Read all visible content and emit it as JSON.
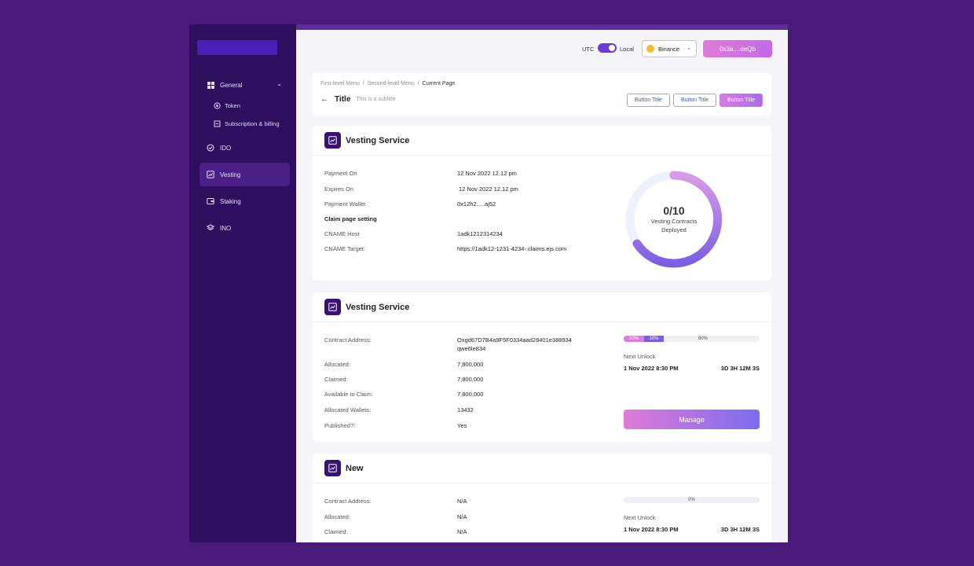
{
  "colors": {
    "background": "#4a1a7a",
    "sidebar": "#2e0e5e",
    "accent": "#6a3cd6",
    "gradient_start": "#e07ad8",
    "gradient_end": "#7b6cf0"
  },
  "sidebar": {
    "items": [
      {
        "label": "General",
        "icon": "grid-icon"
      },
      {
        "label": "Token",
        "icon": "token-icon"
      },
      {
        "label": "Subscription & billing",
        "icon": "billing-icon"
      },
      {
        "label": "IDO",
        "icon": "check-circle-icon"
      },
      {
        "label": "Vesting",
        "icon": "chart-icon",
        "active": true
      },
      {
        "label": "Staking",
        "icon": "wallet-icon"
      },
      {
        "label": "INO",
        "icon": "layers-icon"
      }
    ]
  },
  "header": {
    "utc_label": "UTC",
    "local_label": "Local",
    "exchange": "Binance",
    "wallet": "0x3a....oeQb"
  },
  "page": {
    "breadcrumbs": [
      "First-level Menu",
      "Second-level Menu",
      "Current Page"
    ],
    "title": "Title",
    "subtitle": "This is a subtitle",
    "buttons": [
      "Button Title",
      "Button Title",
      "Button Title"
    ]
  },
  "card1": {
    "title": "Vesting Service",
    "rows": [
      {
        "label": "Payment On",
        "value": "12 Nov 2022 12.12 pm"
      },
      {
        "label": "Expires On",
        "value": "12 Nov 2022 12.12 pm"
      },
      {
        "label": "Payment Wallet",
        "value": "0x12h2.....aj52"
      },
      {
        "label": "Claim page setting",
        "value": ""
      },
      {
        "label": "CNAME Host",
        "value": "1adk1212314234"
      },
      {
        "label": "CNAME Target:",
        "value": "https://1adk12-1231-4234-.claims.ejs.com"
      }
    ],
    "ring": {
      "count": "0/10",
      "label": "Vesting Contracts Deployed",
      "fraction": 0.0
    }
  },
  "card2": {
    "title": "Vesting Service",
    "rows": [
      {
        "label": "Contract Address:",
        "value": "Oxgd67D7B4a9F5F0334aad28401e388934",
        "value2": "qwe6le834"
      },
      {
        "label": "Allocated:",
        "value": "7,800,000"
      },
      {
        "label": "Claimed:",
        "value": "7,800,000"
      },
      {
        "label": "Available to Claim:",
        "value": "7,800,000"
      },
      {
        "label": "Allocated Wallets:",
        "value": "13432"
      },
      {
        "label": "Published?:",
        "value": "Yes"
      }
    ],
    "progress": {
      "seg1": "10%",
      "seg2": "10%",
      "rest": "80%",
      "seg1_value": 10,
      "seg2_value": 10,
      "rest_value": 80
    },
    "next_unlock_label": "Next Unlock",
    "next_unlock_date": "1 Nov 2022 8:30 PM",
    "countdown": "3D 3H 12M 3S",
    "manage_label": "Manage"
  },
  "card3": {
    "title": "New",
    "rows": [
      {
        "label": "Contract Address:",
        "value": "N/A"
      },
      {
        "label": "Allocated:",
        "value": "N/A"
      },
      {
        "label": "Claimed:",
        "value": "N/A"
      }
    ],
    "progress": {
      "label": "0%",
      "value": 0
    },
    "next_unlock_label": "Next Unlock",
    "next_unlock_date": "1 Nov 2022 8:30 PM",
    "countdown": "3D 3H 12M 3S"
  }
}
